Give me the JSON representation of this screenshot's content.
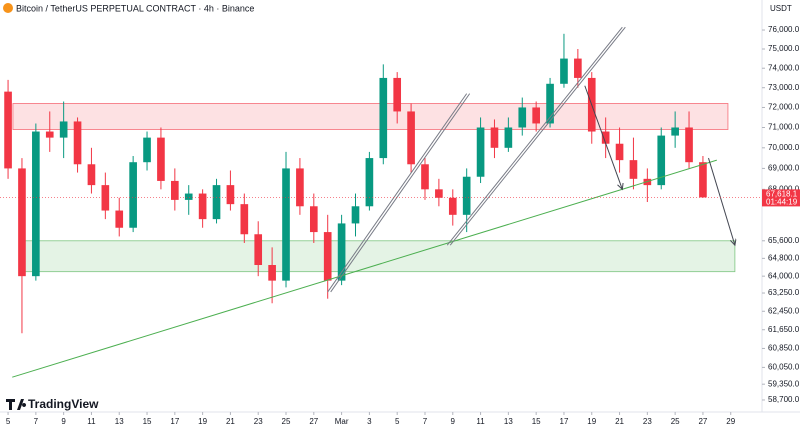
{
  "chart_data": {
    "type": "candlestick",
    "title": "Bitcoin / TetherUS PERPETUAL CONTRACT · 4h · Binance",
    "currency": "USDT",
    "brand": "TradingView",
    "log_scale": true,
    "grid": false,
    "up_color": "#089981",
    "down_color": "#f23645",
    "xlim": [
      -0.58,
      54.25
    ],
    "ylim": [
      58290,
      77610
    ],
    "xticks": [
      {
        "value": 0,
        "label": "5"
      },
      {
        "value": 2,
        "label": "7"
      },
      {
        "value": 4,
        "label": "9"
      },
      {
        "value": 6,
        "label": "11"
      },
      {
        "value": 8,
        "label": "13"
      },
      {
        "value": 10,
        "label": "15"
      },
      {
        "value": 12,
        "label": "17"
      },
      {
        "value": 14,
        "label": "19"
      },
      {
        "value": 16,
        "label": "21"
      },
      {
        "value": 18,
        "label": "23"
      },
      {
        "value": 20,
        "label": "25"
      },
      {
        "value": 22,
        "label": "27"
      },
      {
        "value": 24,
        "label": "Mar"
      },
      {
        "value": 26,
        "label": "3"
      },
      {
        "value": 28,
        "label": "5"
      },
      {
        "value": 30,
        "label": "7"
      },
      {
        "value": 32,
        "label": "9"
      },
      {
        "value": 34,
        "label": "11"
      },
      {
        "value": 36,
        "label": "13"
      },
      {
        "value": 38,
        "label": "15"
      },
      {
        "value": 40,
        "label": "17"
      },
      {
        "value": 42,
        "label": "19"
      },
      {
        "value": 44,
        "label": "21"
      },
      {
        "value": 46,
        "label": "23"
      },
      {
        "value": 48,
        "label": "25"
      },
      {
        "value": 50,
        "label": "27"
      },
      {
        "value": 52,
        "label": "29"
      }
    ],
    "yticks": [
      {
        "value": 58700,
        "label": "58,700.0"
      },
      {
        "value": 59350,
        "label": "59,350.0"
      },
      {
        "value": 60050,
        "label": "60,050.0"
      },
      {
        "value": 60850,
        "label": "60,850.0"
      },
      {
        "value": 61650,
        "label": "61,650.0"
      },
      {
        "value": 62450,
        "label": "62,450.0"
      },
      {
        "value": 63250,
        "label": "63,250.0"
      },
      {
        "value": 64000,
        "label": "64,000.0"
      },
      {
        "value": 64800,
        "label": "64,800.0"
      },
      {
        "value": 65600,
        "label": "65,600.0"
      },
      {
        "value": 68000,
        "label": "68,000.0"
      },
      {
        "value": 69000,
        "label": "69,000.0"
      },
      {
        "value": 70000,
        "label": "70,000.0"
      },
      {
        "value": 71000,
        "label": "71,000.0"
      },
      {
        "value": 72000,
        "label": "72,000.0"
      },
      {
        "value": 73000,
        "label": "73,000.0"
      },
      {
        "value": 74000,
        "label": "74,000.0"
      },
      {
        "value": 75000,
        "label": "75,000.0"
      },
      {
        "value": 76000,
        "label": "76,000.0"
      }
    ],
    "x": [
      0,
      1,
      2,
      3,
      4,
      5,
      6,
      7,
      8,
      9,
      10,
      11,
      12,
      13,
      14,
      15,
      16,
      17,
      18,
      19,
      20,
      21,
      22,
      23,
      24,
      25,
      26,
      27,
      28,
      29,
      30,
      31,
      32,
      33,
      34,
      35,
      36,
      37,
      38,
      39,
      40,
      41,
      42,
      43,
      44,
      45,
      46,
      47,
      48,
      49,
      50
    ],
    "open": [
      72800,
      69000,
      64000,
      70800,
      70500,
      71300,
      69200,
      68200,
      67000,
      66200,
      69300,
      70500,
      68400,
      67500,
      67800,
      66600,
      68200,
      67300,
      65900,
      64500,
      63800,
      69000,
      67200,
      66000,
      63800,
      66400,
      67200,
      69500,
      73500,
      71800,
      69200,
      68000,
      67600,
      66800,
      68600,
      71000,
      70000,
      71000,
      72000,
      71200,
      73200,
      74500,
      73500,
      70800,
      70200,
      69400,
      68500,
      68200,
      70600,
      71000,
      69300
    ],
    "high": [
      73400,
      69500,
      71200,
      71800,
      72300,
      71500,
      70000,
      68800,
      67600,
      69600,
      70800,
      71000,
      69000,
      68200,
      68000,
      68500,
      68900,
      67800,
      66500,
      65300,
      69800,
      69500,
      67800,
      66800,
      66800,
      67800,
      69800,
      74200,
      73800,
      72200,
      69500,
      68500,
      68000,
      69000,
      71500,
      71400,
      71500,
      72500,
      72300,
      73500,
      75800,
      75000,
      73800,
      71500,
      71000,
      70500,
      69000,
      71000,
      71800,
      71800,
      69600
    ],
    "low": [
      68500,
      61500,
      63800,
      69800,
      69500,
      68800,
      67800,
      66600,
      65800,
      66000,
      68900,
      68000,
      67000,
      66800,
      66200,
      66400,
      67000,
      65500,
      64000,
      62800,
      63500,
      66800,
      65500,
      63000,
      63600,
      65800,
      67000,
      69200,
      71200,
      68800,
      67500,
      67200,
      66300,
      66000,
      68300,
      69500,
      69800,
      70600,
      70800,
      71000,
      73000,
      73000,
      70200,
      69500,
      68800,
      68000,
      67400,
      68000,
      70000,
      69000,
      67600
    ],
    "close": [
      69000,
      64000,
      70800,
      70500,
      71300,
      69200,
      68200,
      67000,
      66200,
      69300,
      70500,
      68400,
      67500,
      67800,
      66600,
      68200,
      67300,
      65900,
      64500,
      63800,
      69000,
      67200,
      66000,
      63800,
      66400,
      67200,
      69500,
      73500,
      71800,
      69200,
      68000,
      67600,
      66800,
      68600,
      71000,
      70000,
      71000,
      72000,
      71200,
      73200,
      74500,
      73500,
      70800,
      70200,
      69400,
      68500,
      68200,
      70600,
      71000,
      69300,
      67618.1
    ],
    "last_price_label": "67,618.1",
    "countdown": "01:44:19",
    "zones": [
      {
        "from": 70900,
        "to": 72200,
        "x0": 0.35,
        "x1": 51.8,
        "color": "#f23645"
      },
      {
        "from": 64200,
        "to": 65600,
        "x0": 1.0,
        "x1": 52.3,
        "color": "#4caf50"
      }
    ],
    "lines": [
      {
        "x": [
          0.3,
          51.0
        ],
        "y": [
          59640,
          69400
        ],
        "color": "#4caf50",
        "style": "single"
      },
      {
        "x": [
          23.0,
          33.0
        ],
        "y": [
          63300,
          72700
        ],
        "color": "#787b86",
        "style": "double"
      },
      {
        "x": [
          31.6,
          44.2
        ],
        "y": [
          65400,
          76150
        ],
        "color": "#787b86",
        "style": "double"
      },
      {
        "x": [
          41.5,
          44.2
        ],
        "y": [
          73100,
          68000
        ],
        "color": "#434651",
        "style": "arrow"
      },
      {
        "x": [
          50.4,
          52.3
        ],
        "y": [
          69500,
          65400
        ],
        "color": "#434651",
        "style": "arrow"
      }
    ]
  }
}
